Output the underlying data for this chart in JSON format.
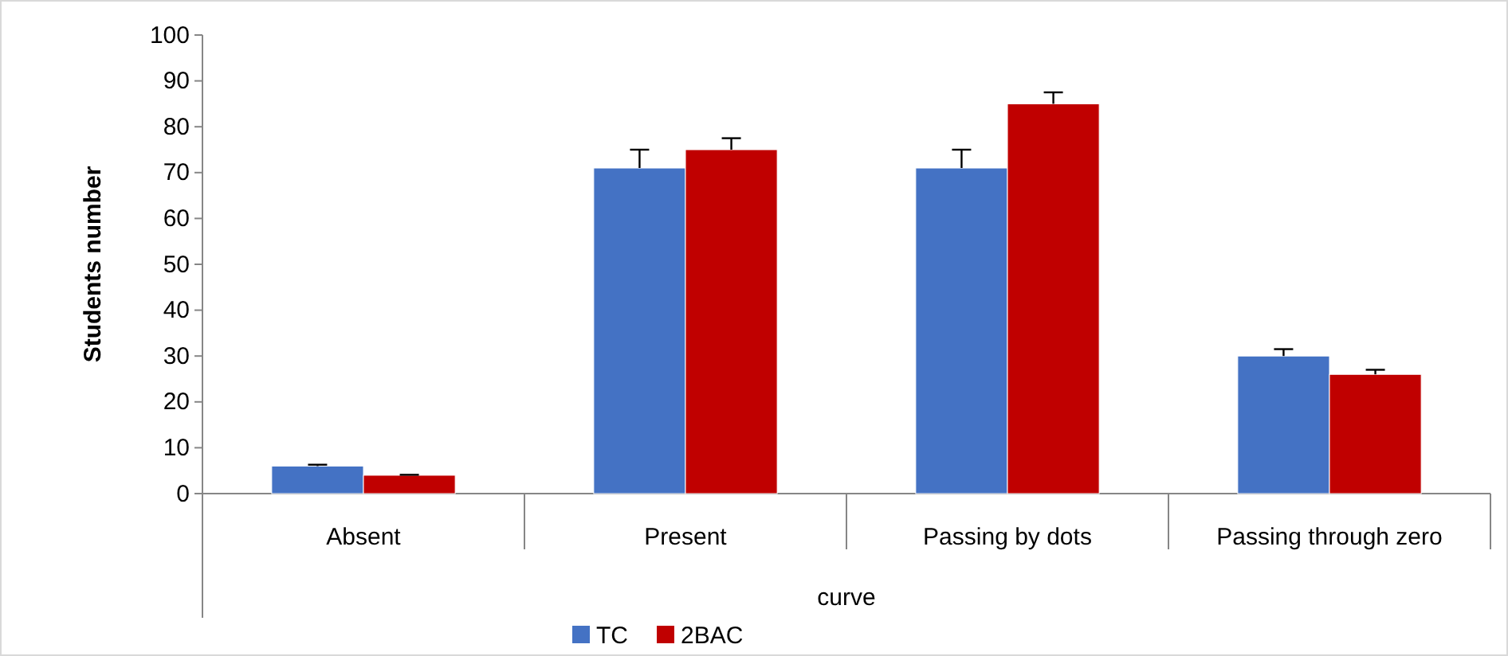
{
  "chart_data": {
    "type": "bar",
    "xlabel": "curve",
    "ylabel": "Students number",
    "categories": [
      "Absent",
      "Present",
      "Passing by dots",
      "Passing through zero"
    ],
    "series": [
      {
        "name": "TC",
        "color": "#4472c4",
        "values": [
          6,
          71,
          71,
          30
        ],
        "errors": [
          [
            6,
            6.3
          ],
          [
            71,
            75
          ],
          [
            71,
            75
          ],
          [
            30,
            31.5
          ]
        ]
      },
      {
        "name": "2BAC",
        "color": "#c00000",
        "values": [
          4,
          75,
          85,
          26
        ],
        "errors": [
          [
            4,
            4.1
          ],
          [
            75,
            77.5
          ],
          [
            85,
            87.5
          ],
          [
            26,
            27
          ]
        ]
      }
    ],
    "ylim": [
      0,
      100
    ],
    "yticks": [
      0,
      10,
      20,
      30,
      40,
      50,
      60,
      70,
      80,
      90,
      100
    ],
    "grid": false,
    "legend": "bottom"
  }
}
